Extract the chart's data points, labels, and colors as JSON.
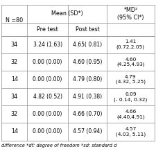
{
  "header_n": "N =80",
  "col_header_mean": "Mean (SD*)",
  "col_header_md": "*MD²\n(95% CI*)",
  "col_sub1": "Pre test",
  "col_sub2": "Post test",
  "rows": [
    {
      "n": "34",
      "pre": "3.24 (1.63)",
      "post": "4.65( 0.81)",
      "md": "1.41\n(0.72,2.05)"
    },
    {
      "n": "32",
      "pre": "0.00 (0.00)",
      "post": "4.60 (0.95)",
      "md": "4.60\n(4.25,4.93)"
    },
    {
      "n": "14",
      "pre": "0.00 (0.00)",
      "post": "4.79 (0.80)",
      "md": "4.79\n(4.32, 5.25)"
    },
    {
      "n": "34",
      "pre": "4.82 (0.52)",
      "post": "4.91 (0.38)",
      "md": "0.09\n(- 0.14, 0.32)"
    },
    {
      "n": "32",
      "pre": "0.00 (0.00)",
      "post": "4.66 (0.70)",
      "md": "4.66\n(4.40,4.91)"
    },
    {
      "n": "14",
      "pre": "0.00 (0.00)",
      "post": "4.57 (0.94)",
      "md": "4.57\n(4.03, 5.11)"
    }
  ],
  "footnote": "difference *df: degree of freedom *sd: standard d",
  "bg_color": "#ffffff",
  "text_color": "#000000",
  "line_color": "#888888",
  "font_size": 5.8,
  "footnote_font_size": 4.8
}
